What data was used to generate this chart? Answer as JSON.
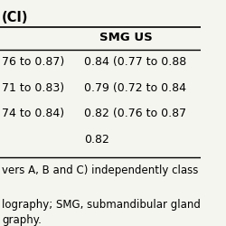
{
  "title_text": "(CI)",
  "header_col2": "SMG US",
  "rows": [
    [
      "76 to 0.87)",
      "0.84 (0.77 to 0.88"
    ],
    [
      "71 to 0.83)",
      "0.79 (0.72 to 0.84"
    ],
    [
      "74 to 0.84)",
      "0.82 (0.76 to 0.87"
    ],
    [
      "",
      "0.82"
    ]
  ],
  "footer_lines": [
    "vers A, B and C) independently class",
    "",
    "lography; SMG, submandibular gland",
    "graphy."
  ],
  "bg_color": "#f5f5f0",
  "text_color": "#000000",
  "header_fontsize": 9.5,
  "body_fontsize": 9.0,
  "footer_fontsize": 8.5,
  "title_fontsize": 10.5
}
